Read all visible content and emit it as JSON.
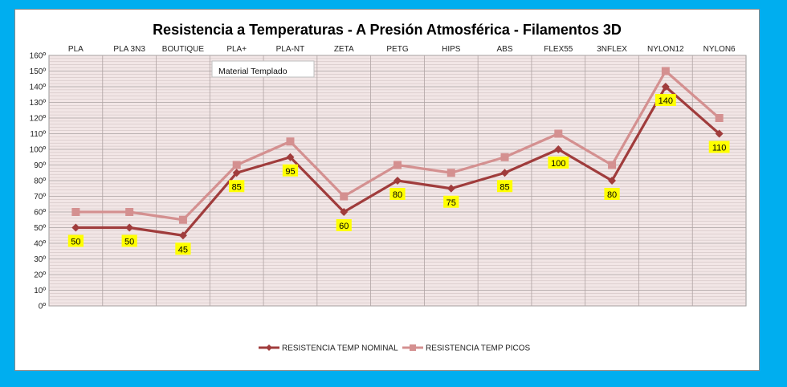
{
  "chart_data": {
    "type": "line",
    "title": "Resistencia a Temperaturas - A Presión Atmosférica - Filamentos 3D",
    "categories": [
      "PLA",
      "PLA 3N3",
      "BOUTIQUE",
      "PLA+",
      "PLA-NT",
      "ZETA",
      "PETG",
      "HIPS",
      "ABS",
      "FLEX55",
      "3NFLEX",
      "NYLON12",
      "NYLON6"
    ],
    "series": [
      {
        "name": "RESISTENCIA TEMP NOMINAL",
        "values": [
          50,
          50,
          45,
          85,
          95,
          60,
          80,
          75,
          85,
          100,
          80,
          140,
          110
        ],
        "color": "#a03c3c",
        "marker": "diamond",
        "data_labels": true
      },
      {
        "name": "RESISTENCIA TEMP PICOS",
        "values": [
          60,
          60,
          55,
          90,
          105,
          70,
          90,
          85,
          95,
          110,
          90,
          150,
          120
        ],
        "color": "#d49090",
        "marker": "square",
        "data_labels": false
      }
    ],
    "y_tick_labels": [
      "0º",
      "10º",
      "20º",
      "30º",
      "40º",
      "50º",
      "60º",
      "70º",
      "80º",
      "90º",
      "100º",
      "110º",
      "120º",
      "130º",
      "140º",
      "150º",
      "160º"
    ],
    "ylim": [
      0,
      160
    ],
    "y_step": 10,
    "xlabel": "",
    "ylabel": "",
    "grid": true,
    "plot_background": "#f2e6e6",
    "data_label_background": "#ffff00",
    "legend": "bottom",
    "annotation": "Material Templado"
  }
}
